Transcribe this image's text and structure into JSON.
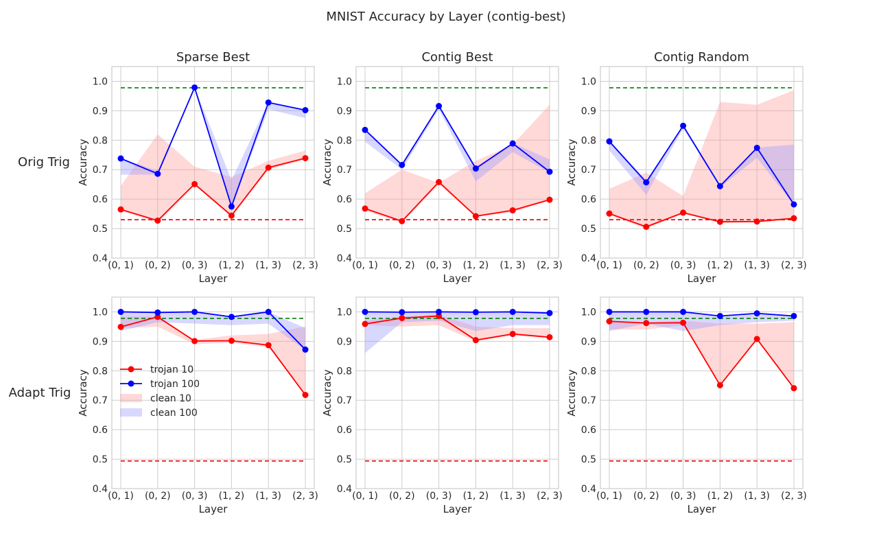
{
  "figure": {
    "title": "MNIST Accuracy by Layer (contig-best)",
    "row_labels": [
      "Orig Trig",
      "Adapt Trig"
    ],
    "colors": {
      "trojan10": "#ff0000",
      "trojan100": "#0000ff",
      "clean10_fill": "#ff9999",
      "clean100_fill": "#9999ff",
      "clean_ref": "#007f00",
      "trojan_ref": "#e00000",
      "grid": "#cccccc",
      "axes_edge": "#cccccc"
    }
  },
  "chart_data": [
    {
      "type": "line",
      "title": "Sparse Best",
      "row": "Orig Trig",
      "xlabel": "Layer",
      "ylabel": "Accuracy",
      "categories": [
        "(0, 1)",
        "(0, 2)",
        "(0, 3)",
        "(1, 2)",
        "(1, 3)",
        "(2, 3)"
      ],
      "ylim": [
        0.4,
        1.05
      ],
      "yticks": [
        0.4,
        0.5,
        0.6,
        0.7,
        0.8,
        0.9,
        1.0
      ],
      "series": [
        {
          "name": "trojan 10",
          "values": [
            0.565,
            0.527,
            0.651,
            0.544,
            0.707,
            0.739
          ]
        },
        {
          "name": "trojan 100",
          "values": [
            0.738,
            0.686,
            0.979,
            0.575,
            0.928,
            0.902
          ]
        }
      ],
      "bands": [
        {
          "name": "clean 10",
          "lower": [
            0.56,
            0.52,
            0.65,
            0.54,
            0.7,
            0.735
          ],
          "upper": [
            0.645,
            0.82,
            0.71,
            0.675,
            0.73,
            0.765
          ]
        },
        {
          "name": "clean 100",
          "lower": [
            0.683,
            0.683,
            0.979,
            0.57,
            0.905,
            0.875
          ],
          "upper": [
            0.74,
            0.695,
            0.98,
            0.665,
            0.93,
            0.905
          ]
        }
      ],
      "reference_lines": [
        {
          "name": "clean reference",
          "value": 0.978
        },
        {
          "name": "trojan reference",
          "value": 0.53
        }
      ]
    },
    {
      "type": "line",
      "title": "Contig Best",
      "row": "Orig Trig",
      "xlabel": "Layer",
      "ylabel": "Accuracy",
      "categories": [
        "(0, 1)",
        "(0, 2)",
        "(0, 3)",
        "(1, 2)",
        "(1, 3)",
        "(2, 3)"
      ],
      "ylim": [
        0.4,
        1.05
      ],
      "yticks": [
        0.4,
        0.5,
        0.6,
        0.7,
        0.8,
        0.9,
        1.0
      ],
      "series": [
        {
          "name": "trojan 10",
          "values": [
            0.568,
            0.525,
            0.658,
            0.542,
            0.562,
            0.598
          ]
        },
        {
          "name": "trojan 100",
          "values": [
            0.835,
            0.716,
            0.916,
            0.704,
            0.789,
            0.693
          ]
        }
      ],
      "bands": [
        {
          "name": "clean 10",
          "lower": [
            0.56,
            0.52,
            0.65,
            0.54,
            0.555,
            0.595
          ],
          "upper": [
            0.62,
            0.7,
            0.655,
            0.73,
            0.785,
            0.92
          ]
        },
        {
          "name": "clean 100",
          "lower": [
            0.795,
            0.7,
            0.905,
            0.66,
            0.76,
            0.69
          ],
          "upper": [
            0.84,
            0.72,
            0.92,
            0.71,
            0.79,
            0.735
          ]
        }
      ],
      "reference_lines": [
        {
          "name": "clean reference",
          "value": 0.978
        },
        {
          "name": "trojan reference",
          "value": 0.53
        }
      ]
    },
    {
      "type": "line",
      "title": "Contig Random",
      "row": "Orig Trig",
      "xlabel": "Layer",
      "ylabel": "Accuracy",
      "categories": [
        "(0, 1)",
        "(0, 2)",
        "(0, 3)",
        "(1, 2)",
        "(1, 3)",
        "(2, 3)"
      ],
      "ylim": [
        0.4,
        1.05
      ],
      "yticks": [
        0.4,
        0.5,
        0.6,
        0.7,
        0.8,
        0.9,
        1.0
      ],
      "series": [
        {
          "name": "trojan 10",
          "values": [
            0.551,
            0.506,
            0.554,
            0.523,
            0.524,
            0.535
          ]
        },
        {
          "name": "trojan 100",
          "values": [
            0.796,
            0.657,
            0.849,
            0.644,
            0.774,
            0.582
          ]
        }
      ],
      "bands": [
        {
          "name": "clean 10",
          "lower": [
            0.545,
            0.5,
            0.55,
            0.52,
            0.52,
            0.53
          ],
          "upper": [
            0.635,
            0.69,
            0.61,
            0.93,
            0.92,
            0.97
          ]
        },
        {
          "name": "clean 100",
          "lower": [
            0.765,
            0.615,
            0.84,
            0.64,
            0.74,
            0.58
          ],
          "upper": [
            0.8,
            0.665,
            0.85,
            0.65,
            0.775,
            0.785
          ]
        }
      ],
      "reference_lines": [
        {
          "name": "clean reference",
          "value": 0.978
        },
        {
          "name": "trojan reference",
          "value": 0.53
        }
      ]
    },
    {
      "type": "line",
      "title": "",
      "row": "Adapt Trig",
      "xlabel": "Layer",
      "ylabel": "Accuracy",
      "categories": [
        "(0, 1)",
        "(0, 2)",
        "(0, 3)",
        "(1, 2)",
        "(1, 3)",
        "(2, 3)"
      ],
      "ylim": [
        0.4,
        1.05
      ],
      "yticks": [
        0.4,
        0.5,
        0.6,
        0.7,
        0.8,
        0.9,
        1.0
      ],
      "legend": "center-left",
      "series": [
        {
          "name": "trojan 10",
          "values": [
            0.949,
            0.983,
            0.901,
            0.902,
            0.887,
            0.718
          ]
        },
        {
          "name": "trojan 100",
          "values": [
            1.0,
            0.998,
            1.0,
            0.983,
            1.0,
            0.872
          ]
        }
      ],
      "bands": [
        {
          "name": "clean 10",
          "lower": [
            0.945,
            0.95,
            0.89,
            0.895,
            0.88,
            0.715
          ],
          "upper": [
            0.985,
            0.985,
            0.905,
            0.92,
            0.925,
            0.95
          ]
        },
        {
          "name": "clean 100",
          "lower": [
            0.935,
            0.965,
            0.96,
            0.955,
            0.96,
            0.87
          ],
          "upper": [
            1.0,
            0.998,
            1.0,
            0.985,
            1.0,
            0.945
          ]
        }
      ],
      "reference_lines": [
        {
          "name": "clean reference",
          "value": 0.978
        },
        {
          "name": "trojan reference",
          "value": 0.494
        }
      ]
    },
    {
      "type": "line",
      "title": "",
      "row": "Adapt Trig",
      "xlabel": "Layer",
      "ylabel": "Accuracy",
      "categories": [
        "(0, 1)",
        "(0, 2)",
        "(0, 3)",
        "(1, 2)",
        "(1, 3)",
        "(2, 3)"
      ],
      "ylim": [
        0.4,
        1.05
      ],
      "yticks": [
        0.4,
        0.5,
        0.6,
        0.7,
        0.8,
        0.9,
        1.0
      ],
      "series": [
        {
          "name": "trojan 10",
          "values": [
            0.959,
            0.979,
            0.986,
            0.904,
            0.925,
            0.914
          ]
        },
        {
          "name": "trojan 100",
          "values": [
            1.0,
            0.999,
            1.0,
            0.999,
            1.0,
            0.996
          ]
        }
      ],
      "bands": [
        {
          "name": "clean 10",
          "lower": [
            0.955,
            0.95,
            0.955,
            0.9,
            0.92,
            0.91
          ],
          "upper": [
            0.97,
            0.985,
            0.99,
            0.95,
            0.945,
            0.945
          ]
        },
        {
          "name": "clean 100",
          "lower": [
            0.86,
            0.965,
            0.97,
            0.935,
            0.955,
            0.955
          ],
          "upper": [
            1.0,
            0.999,
            1.0,
            0.999,
            1.0,
            0.996
          ]
        }
      ],
      "reference_lines": [
        {
          "name": "clean reference",
          "value": 0.978
        },
        {
          "name": "trojan reference",
          "value": 0.494
        }
      ]
    },
    {
      "type": "line",
      "title": "",
      "row": "Adapt Trig",
      "xlabel": "Layer",
      "ylabel": "Accuracy",
      "categories": [
        "(0, 1)",
        "(0, 2)",
        "(0, 3)",
        "(1, 2)",
        "(1, 3)",
        "(2, 3)"
      ],
      "ylim": [
        0.4,
        1.05
      ],
      "yticks": [
        0.4,
        0.5,
        0.6,
        0.7,
        0.8,
        0.9,
        1.0
      ],
      "series": [
        {
          "name": "trojan 10",
          "values": [
            0.968,
            0.962,
            0.963,
            0.751,
            0.908,
            0.741
          ]
        },
        {
          "name": "trojan 100",
          "values": [
            1.0,
            1.0,
            1.0,
            0.986,
            0.995,
            0.986
          ]
        }
      ],
      "bands": [
        {
          "name": "clean 10",
          "lower": [
            0.94,
            0.94,
            0.955,
            0.75,
            0.905,
            0.74
          ],
          "upper": [
            0.97,
            0.965,
            0.97,
            0.96,
            0.96,
            0.965
          ]
        },
        {
          "name": "clean 100",
          "lower": [
            0.935,
            0.96,
            0.935,
            0.955,
            0.965,
            0.97
          ],
          "upper": [
            1.0,
            1.0,
            1.0,
            0.986,
            0.995,
            0.986
          ]
        }
      ],
      "reference_lines": [
        {
          "name": "clean reference",
          "value": 0.978
        },
        {
          "name": "trojan reference",
          "value": 0.494
        }
      ]
    }
  ],
  "legend": {
    "items": [
      {
        "label": "trojan 10",
        "kind": "line",
        "color": "#ff0000"
      },
      {
        "label": "trojan 100",
        "kind": "line",
        "color": "#0000ff"
      },
      {
        "label": "clean 10",
        "kind": "patch",
        "color": "#ff9999"
      },
      {
        "label": "clean 100",
        "kind": "patch",
        "color": "#9999ff"
      }
    ]
  }
}
